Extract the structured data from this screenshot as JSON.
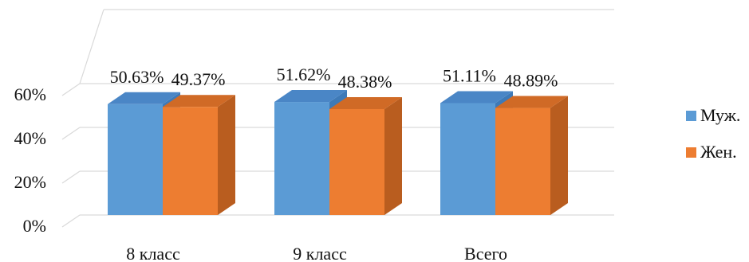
{
  "chart_data": {
    "type": "bar",
    "three_d": true,
    "categories": [
      "8 класс",
      "9 класс",
      "Всего"
    ],
    "series": [
      {
        "name": "Муж.",
        "values": [
          50.63,
          51.62,
          51.11
        ],
        "labels": [
          "50.63%",
          "51.62%",
          "51.11%"
        ],
        "color": "#5b9bd5",
        "side_color": "#3e7ab8",
        "top_color": "#4a86c6"
      },
      {
        "name": "Жен.",
        "values": [
          49.37,
          48.38,
          48.89
        ],
        "labels": [
          "49.37%",
          "48.38%",
          "48.89%"
        ],
        "color": "#ed7d31",
        "side_color": "#b95d1f",
        "top_color": "#d06a26"
      }
    ],
    "y_ticks": [
      "0%",
      "20%",
      "40%",
      "60%"
    ],
    "ylim": [
      0,
      60
    ],
    "grid": true,
    "legend_position": "right",
    "grid_color": "#d9d9d9"
  }
}
